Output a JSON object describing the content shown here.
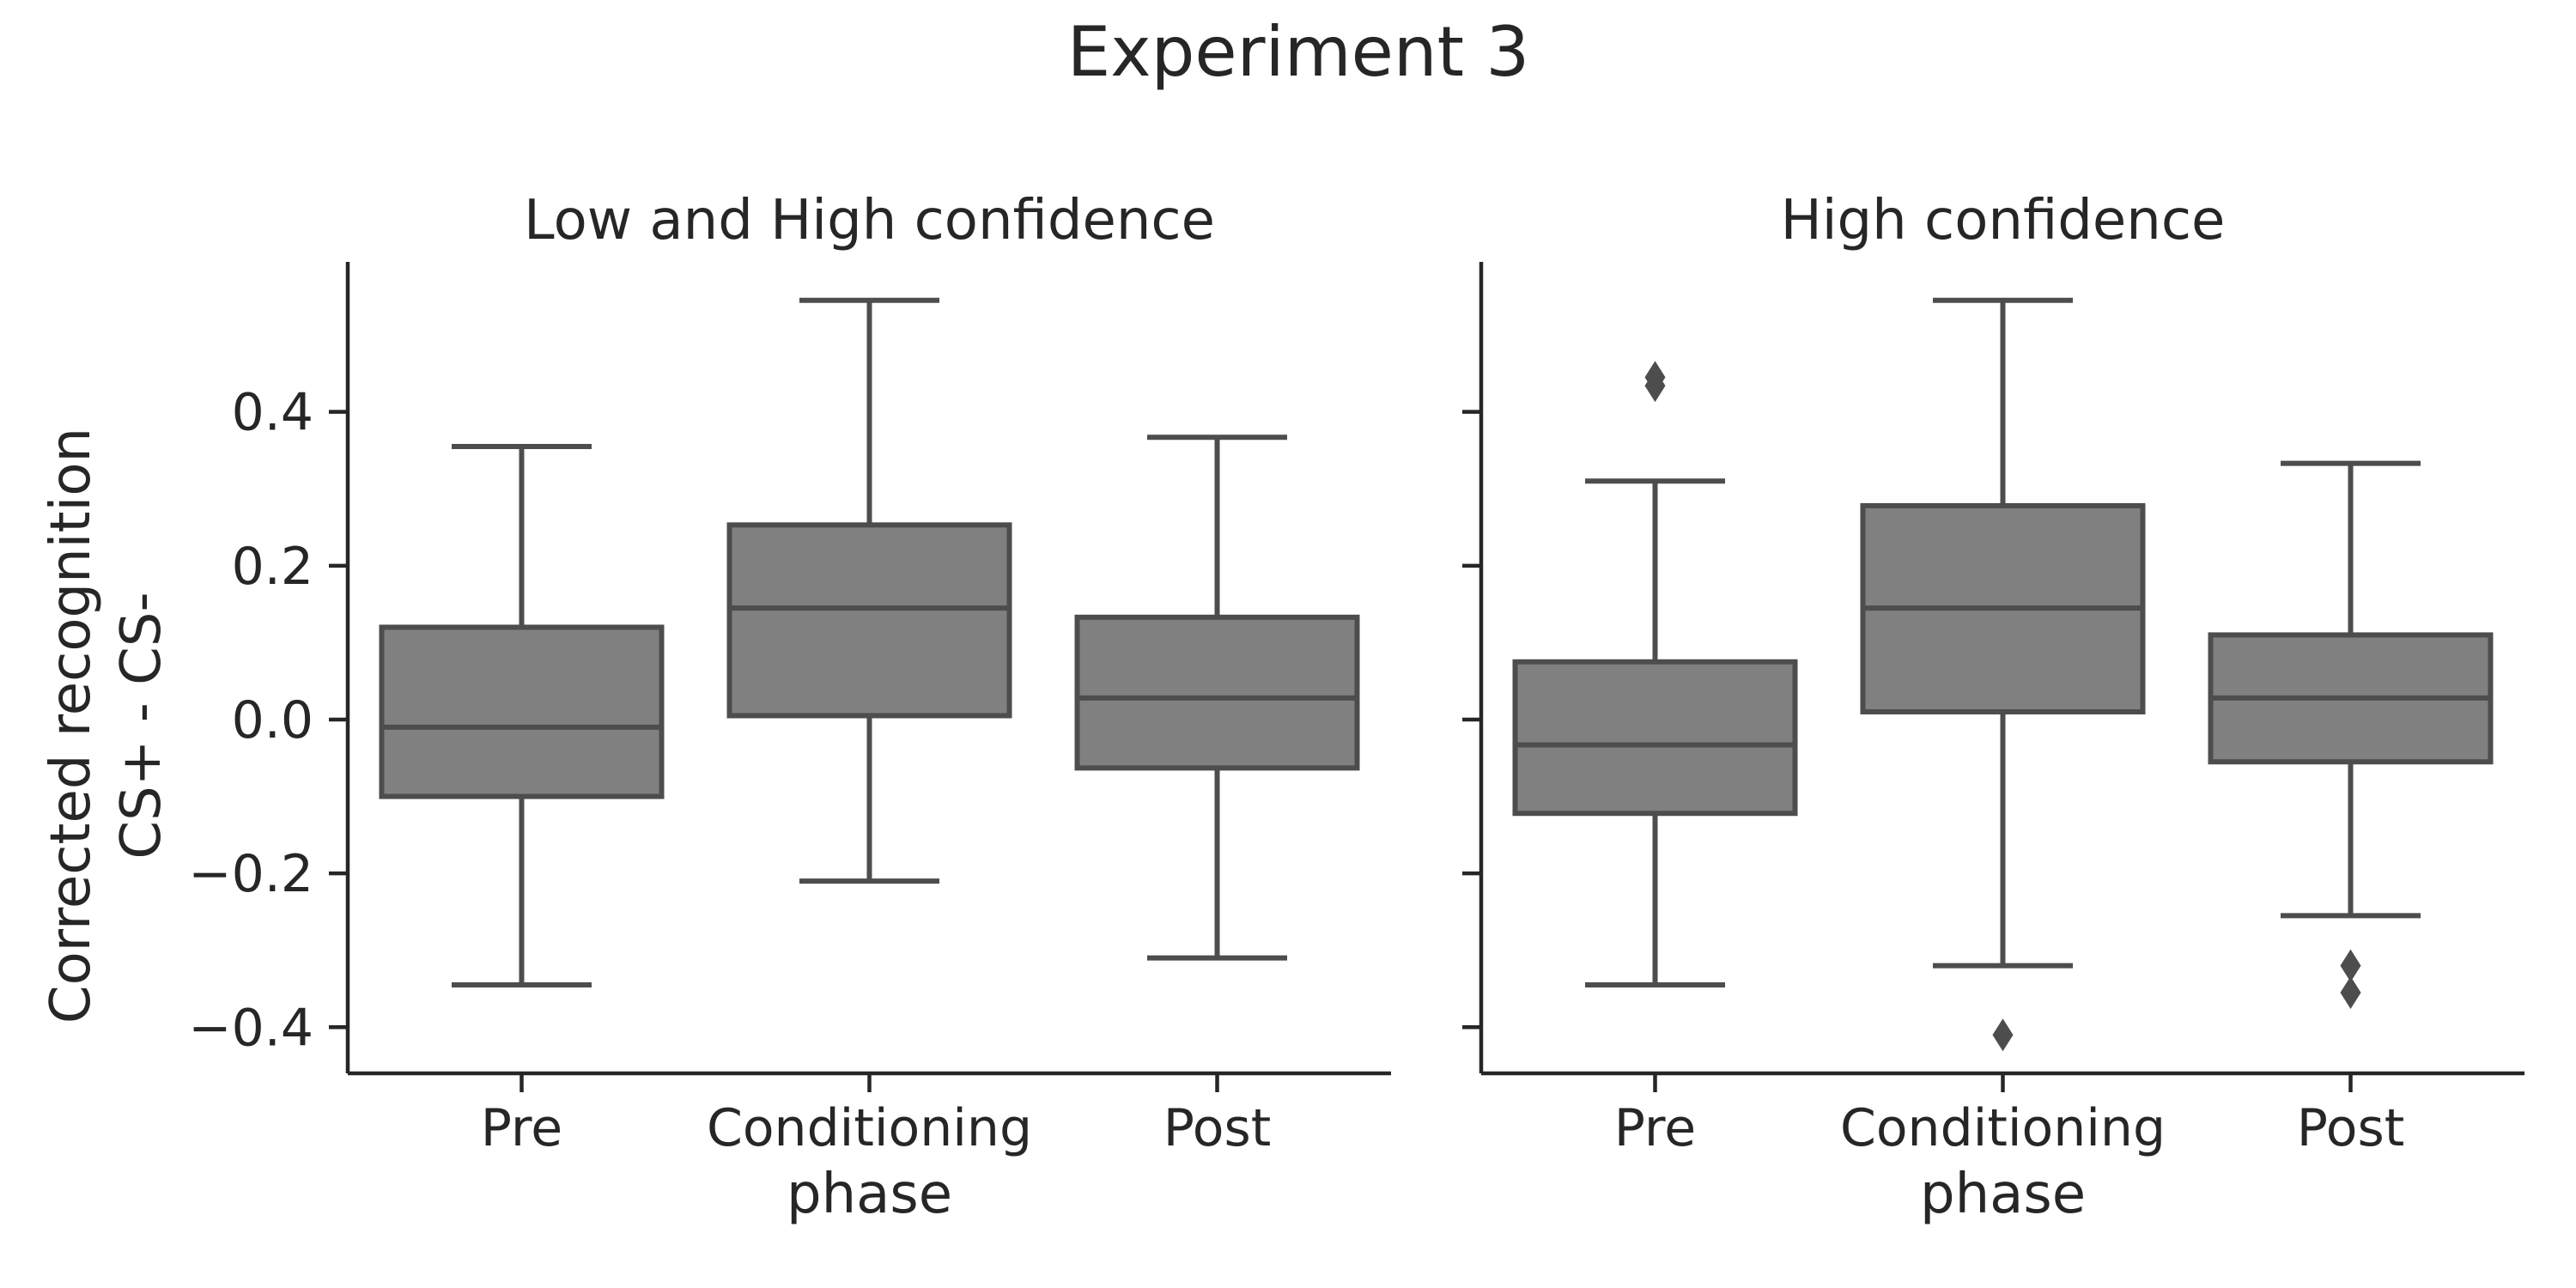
{
  "chart_data": {
    "type": "boxplot",
    "title": "Experiment 3",
    "ylabel_lines": [
      "Corrected recognition",
      "CS+ - CS-"
    ],
    "ylim": [
      -0.46,
      0.595
    ],
    "yticks": [
      -0.4,
      -0.2,
      0.0,
      0.2,
      0.4
    ],
    "ytick_labels": [
      "−0.4",
      "−0.2",
      "0.0",
      "0.2",
      "0.4"
    ],
    "categories": [
      "Pre",
      "Conditioning",
      "Post"
    ],
    "xlabel": "phase",
    "box_color": "#808080",
    "line_color": "#4d4d4d",
    "panels": [
      {
        "title": "Low and High confidence",
        "boxes": [
          {
            "category": "Pre",
            "whislo": -0.345,
            "q1": -0.1,
            "med": -0.01,
            "q3": 0.12,
            "whishi": 0.355,
            "fliers": []
          },
          {
            "category": "Conditioning",
            "whislo": -0.21,
            "q1": 0.005,
            "med": 0.145,
            "q3": 0.253,
            "whishi": 0.545,
            "fliers": []
          },
          {
            "category": "Post",
            "whislo": -0.31,
            "q1": -0.063,
            "med": 0.028,
            "q3": 0.133,
            "whishi": 0.367,
            "fliers": []
          }
        ]
      },
      {
        "title": "High confidence",
        "boxes": [
          {
            "category": "Pre",
            "whislo": -0.345,
            "q1": -0.122,
            "med": -0.033,
            "q3": 0.075,
            "whishi": 0.31,
            "fliers": [
              0.434,
              0.445
            ]
          },
          {
            "category": "Conditioning",
            "whislo": -0.32,
            "q1": 0.01,
            "med": 0.145,
            "q3": 0.278,
            "whishi": 0.545,
            "fliers": [
              -0.41
            ]
          },
          {
            "category": "Post",
            "whislo": -0.255,
            "q1": -0.055,
            "med": 0.028,
            "q3": 0.11,
            "whishi": 0.333,
            "fliers": [
              -0.32,
              -0.355
            ]
          }
        ]
      }
    ]
  }
}
